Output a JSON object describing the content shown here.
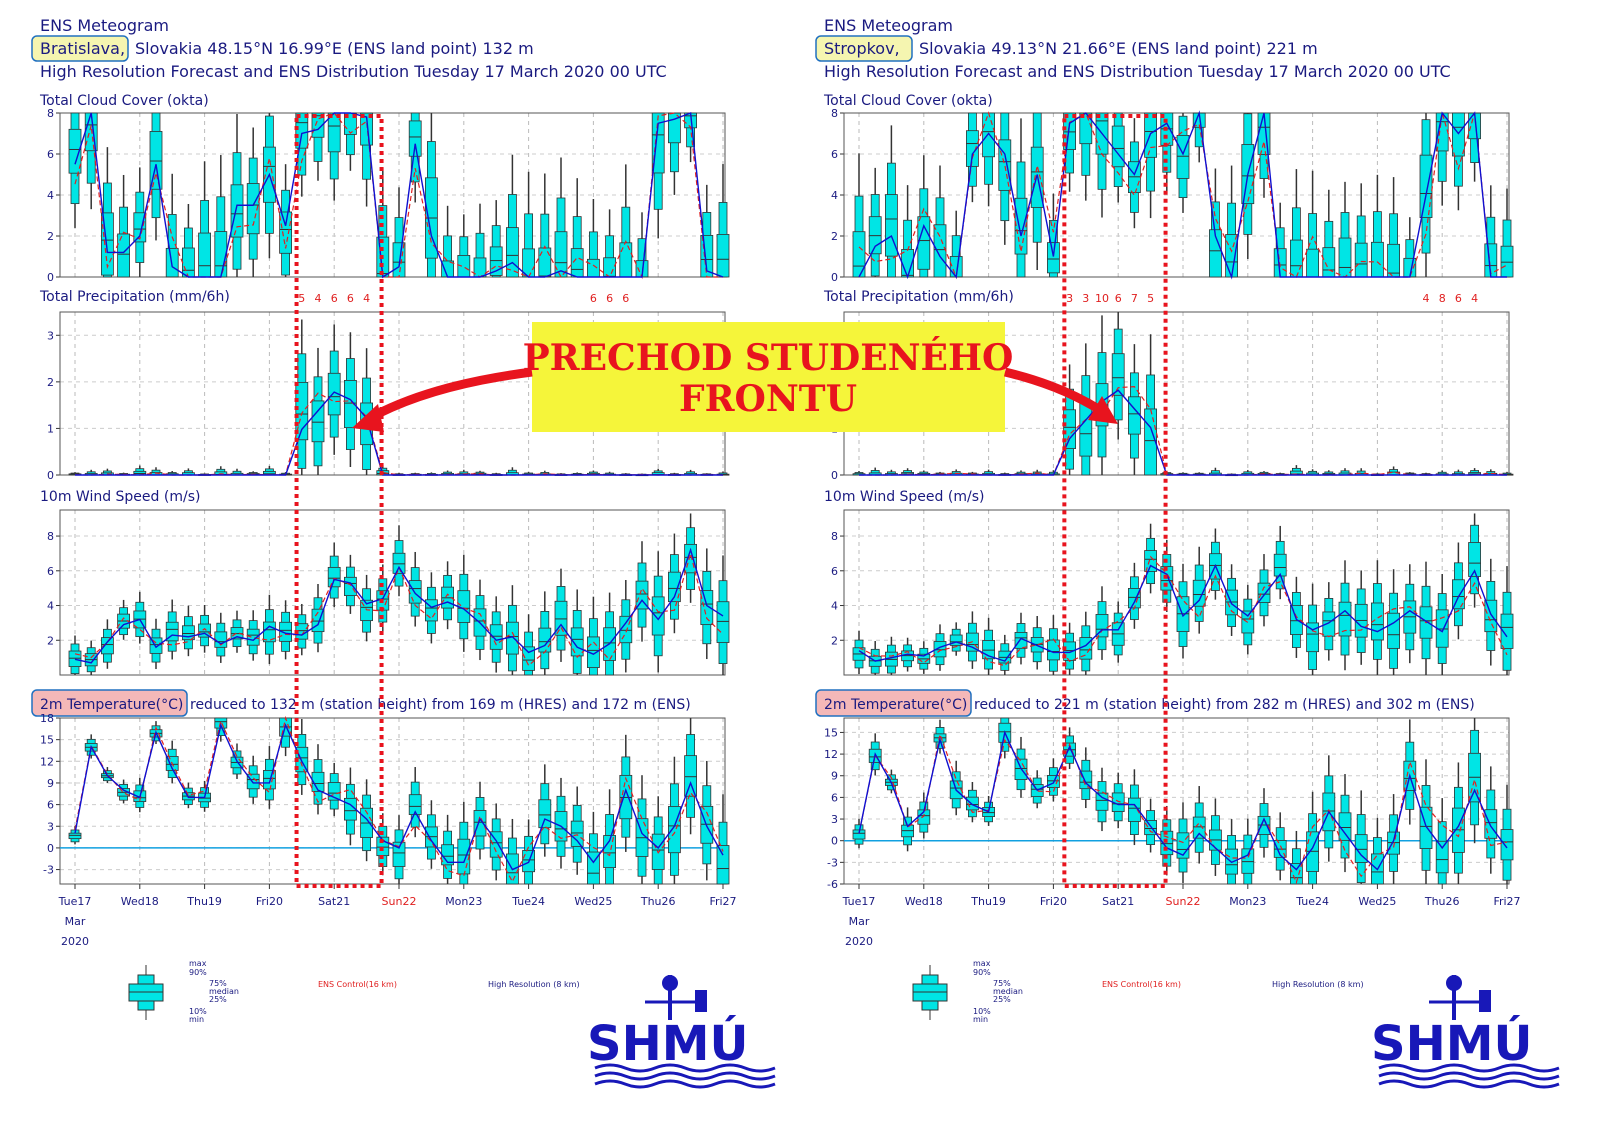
{
  "callout": {
    "line1": "PRECHOD STUDENÉHO",
    "line2": "FRONTU"
  },
  "colors": {
    "box": "#00e5e5",
    "control": "#e02020",
    "hres": "#1010d0",
    "text": "#1a1a80",
    "frame": "#e8141e",
    "callout_bg": "#f5f53a"
  },
  "panels": [
    {
      "id": "bratislava",
      "title": "ENS Meteogram",
      "location_name": "Bratislava,",
      "location_rest": "Slovakia 48.15°N 16.99°E (ENS land point) 132 m",
      "subtitle": "High Resolution Forecast and ENS Distribution Tuesday 17 March 2020 00 UTC",
      "temp_label_box": "2m Temperature(°C)",
      "temp_label_rest": "reduced to 132 m (station height) from 169 m (HRES) and 172 m (ENS)",
      "precip_counts": [
        {
          "t": 3.5,
          "label": "5"
        },
        {
          "t": 3.75,
          "label": "4"
        },
        {
          "t": 4.0,
          "label": "6"
        },
        {
          "t": 4.25,
          "label": "6"
        },
        {
          "t": 4.5,
          "label": "4"
        },
        {
          "t": 8.0,
          "label": "6"
        },
        {
          "t": 8.25,
          "label": "6"
        },
        {
          "t": 8.5,
          "label": "6"
        }
      ],
      "front_window": [
        3.45,
        4.7
      ]
    },
    {
      "id": "stropkov",
      "title": "ENS Meteogram",
      "location_name": "Stropkov,",
      "location_rest": "Slovakia 49.13°N 21.66°E (ENS land point) 221 m",
      "subtitle": "High Resolution Forecast and ENS Distribution Tuesday 17 March 2020 00 UTC",
      "temp_label_box": "2m Temperature(°C)",
      "temp_label_rest": "reduced to 221 m (station height) from 282 m (HRES) and 302 m (ENS)",
      "precip_counts": [
        {
          "t": 3.25,
          "label": "3"
        },
        {
          "t": 3.5,
          "label": "3"
        },
        {
          "t": 3.75,
          "label": "10"
        },
        {
          "t": 4.0,
          "label": "6"
        },
        {
          "t": 4.25,
          "label": "7"
        },
        {
          "t": 4.5,
          "label": "5"
        },
        {
          "t": 8.75,
          "label": "4"
        },
        {
          "t": 9.0,
          "label": "8"
        },
        {
          "t": 9.25,
          "label": "6"
        },
        {
          "t": 9.5,
          "label": "4"
        }
      ],
      "front_window": [
        3.2,
        4.7
      ]
    }
  ],
  "charts": {
    "cloud": {
      "title": "Total Cloud Cover (okta)",
      "ylim": [
        0,
        8
      ],
      "yticks": [
        "0",
        "2",
        "4",
        "6",
        "8"
      ]
    },
    "precip": {
      "title": "Total Precipitation (mm/6h)",
      "ylim": [
        0,
        3.5
      ],
      "yticks": [
        "0",
        "1",
        "2",
        "3"
      ]
    },
    "wind": {
      "title": "10m Wind Speed (m/s)",
      "ylim": [
        0,
        9.5
      ],
      "yticks": [
        "2",
        "4",
        "6",
        "8"
      ]
    },
    "temp_bratislava": {
      "ylim": [
        -5,
        18
      ],
      "yticks": [
        "-3",
        "0",
        "3",
        "6",
        "9",
        "12",
        "15",
        "18"
      ]
    },
    "temp_stropkov": {
      "ylim": [
        -6,
        17
      ],
      "yticks": [
        "-6",
        "-3",
        "0",
        "3",
        "6",
        "9",
        "12",
        "15"
      ]
    }
  },
  "xaxis": {
    "days": [
      "Tue17",
      "Wed18",
      "Thu19",
      "Fri20",
      "Sat21",
      "Sun22",
      "Mon23",
      "Tue24",
      "Wed25",
      "Thu26",
      "Fri27"
    ],
    "weekend_day": "Sun22",
    "month": "Mar",
    "year": "2020",
    "xlim": [
      0,
      10
    ]
  },
  "legend": {
    "max": "max",
    "p90": "90%",
    "p75": "75%",
    "median": "median",
    "p25": "25%",
    "p10": "10%",
    "min": "min",
    "control": "ENS Control(16 km)",
    "hres": "High Resolution (8 km)"
  },
  "logo_text": "SHMÚ",
  "chart_data": [
    {
      "type": "box",
      "station": "Bratislava",
      "title": "Total Cloud Cover (okta)",
      "x_days_from_Tue17": [
        0,
        0.25,
        0.5,
        0.75,
        1,
        1.25,
        1.5,
        1.75,
        2,
        2.25,
        2.5,
        2.75,
        3,
        3.25,
        3.5,
        3.75,
        4,
        4.25,
        4.5,
        4.75,
        5,
        5.25,
        5.5,
        5.75,
        6,
        6.25,
        6.5,
        6.75,
        7,
        7.25,
        7.5,
        7.75,
        8,
        8.25,
        8.5,
        8.75,
        9,
        9.25,
        9.5,
        9.75,
        10
      ],
      "hres": [
        5.5,
        8,
        1.2,
        1.2,
        2,
        5.5,
        0.5,
        0,
        0,
        0,
        3.5,
        3.5,
        5,
        2.5,
        7,
        7.2,
        8,
        8,
        7.8,
        0,
        0.5,
        6.5,
        2,
        0,
        0,
        0,
        0.3,
        0.7,
        0,
        0,
        0.3,
        0,
        0,
        0,
        0,
        0,
        7.5,
        7.7,
        8,
        0.3,
        0
      ]
    },
    {
      "type": "box",
      "station": "Bratislava",
      "title": "10m Wind Speed (m/s)",
      "hres": [
        0.9,
        0.7,
        1.9,
        2.9,
        3.2,
        1.6,
        2.3,
        2.2,
        2.4,
        1.8,
        2.2,
        2.0,
        2.8,
        2.4,
        2.3,
        2.9,
        5.5,
        5.3,
        4.1,
        4.4,
        6.2,
        4.7,
        3.9,
        4.2,
        3.8,
        3.0,
        2.0,
        2.2,
        1.3,
        1.7,
        2.9,
        1.6,
        1.2,
        1.8,
        3.0,
        4.3,
        3.2,
        4.5,
        7.2,
        4.0,
        3.4
      ]
    },
    {
      "type": "box",
      "station": "Bratislava",
      "title": "2m Temperature(°C)",
      "hres": [
        2,
        14,
        10,
        8,
        7,
        16,
        11,
        7,
        7,
        17,
        12,
        9,
        9,
        17,
        12,
        8,
        7,
        6,
        4,
        1,
        0,
        5,
        1,
        -2,
        -2,
        4,
        1,
        -3,
        -2,
        4,
        3,
        1,
        -2,
        1,
        8,
        2,
        0,
        3,
        9,
        3,
        -1
      ]
    },
    {
      "type": "box",
      "station": "Stropkov",
      "title": "Total Cloud Cover (okta)",
      "hres": [
        0,
        1.5,
        2,
        0,
        2.5,
        1,
        0,
        6,
        7,
        6,
        2,
        5,
        1,
        7.5,
        8,
        7,
        6,
        5,
        7,
        7.5,
        6,
        8,
        2,
        0,
        5,
        8,
        0,
        0,
        0,
        0,
        0,
        0,
        0,
        0,
        0,
        4,
        8,
        7,
        8,
        0,
        0
      ]
    },
    {
      "type": "box",
      "station": "Stropkov",
      "title": "10m Wind Speed (m/s)",
      "hres": [
        1.4,
        0.8,
        1.0,
        1.2,
        1.1,
        1.6,
        1.9,
        1.6,
        1.1,
        0.8,
        2.1,
        1.7,
        1.3,
        1.3,
        1.7,
        2.6,
        2.6,
        4.2,
        6.3,
        5.8,
        3.4,
        4.3,
        6.3,
        4.1,
        3.4,
        4.6,
        5.8,
        3.2,
        2.6,
        3.0,
        3.7,
        2.8,
        2.5,
        3.0,
        3.7,
        3.1,
        2.5,
        4.5,
        6.0,
        3.5,
        2.2
      ]
    },
    {
      "type": "box",
      "station": "Stropkov",
      "title": "2m Temperature(°C)",
      "hres": [
        1,
        12,
        8,
        2,
        4,
        14,
        7,
        5,
        4,
        15,
        10,
        7,
        8,
        13,
        8,
        6,
        5,
        5,
        2,
        -1,
        -2,
        1,
        -1,
        -3,
        -2,
        3,
        -2,
        -4,
        -1,
        4,
        1,
        -2,
        -4,
        0,
        9,
        2,
        -1,
        2,
        7,
        2,
        -1
      ]
    }
  ]
}
